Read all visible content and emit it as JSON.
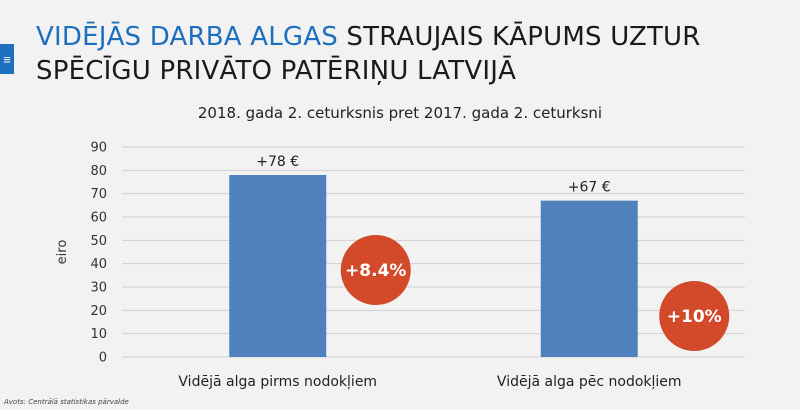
{
  "title": {
    "highlight": "VIDĒJĀS DARBA ALGAS",
    "rest_line1": " STRAUJAIS KĀPUMS UZTUR",
    "line2": "SPĒCĪGU PRIVĀTO PATĒRIŅU LATVIJĀ"
  },
  "menu_icon": "hamburger-icon",
  "source": "Avots: Centrālā statistikas pārvalde",
  "colors": {
    "accent": "#1f6fbf",
    "bar": "#4f81bd",
    "badge": "#d24a2a",
    "grid": "#d0d0d0"
  },
  "chart_data": {
    "type": "bar",
    "title": "2018. gada 2. ceturksnis pret 2017. gada 2. ceturksni",
    "xlabel": "",
    "ylabel": "eiro",
    "ylim": [
      0,
      90
    ],
    "yticks": [
      "0",
      "10",
      "20",
      "30",
      "40",
      "50",
      "60",
      "70",
      "80",
      "90"
    ],
    "categories": [
      "Vidējā alga pirms nodokļiem",
      "Vidējā alga pēc nodokļiem"
    ],
    "values": [
      78,
      67
    ],
    "data_labels": [
      "+78 €",
      "+67 €"
    ],
    "annotations": [
      "+8.4%",
      "+10%"
    ],
    "annotation_values": [
      8.4,
      10
    ],
    "grid": true,
    "legend": "none"
  }
}
